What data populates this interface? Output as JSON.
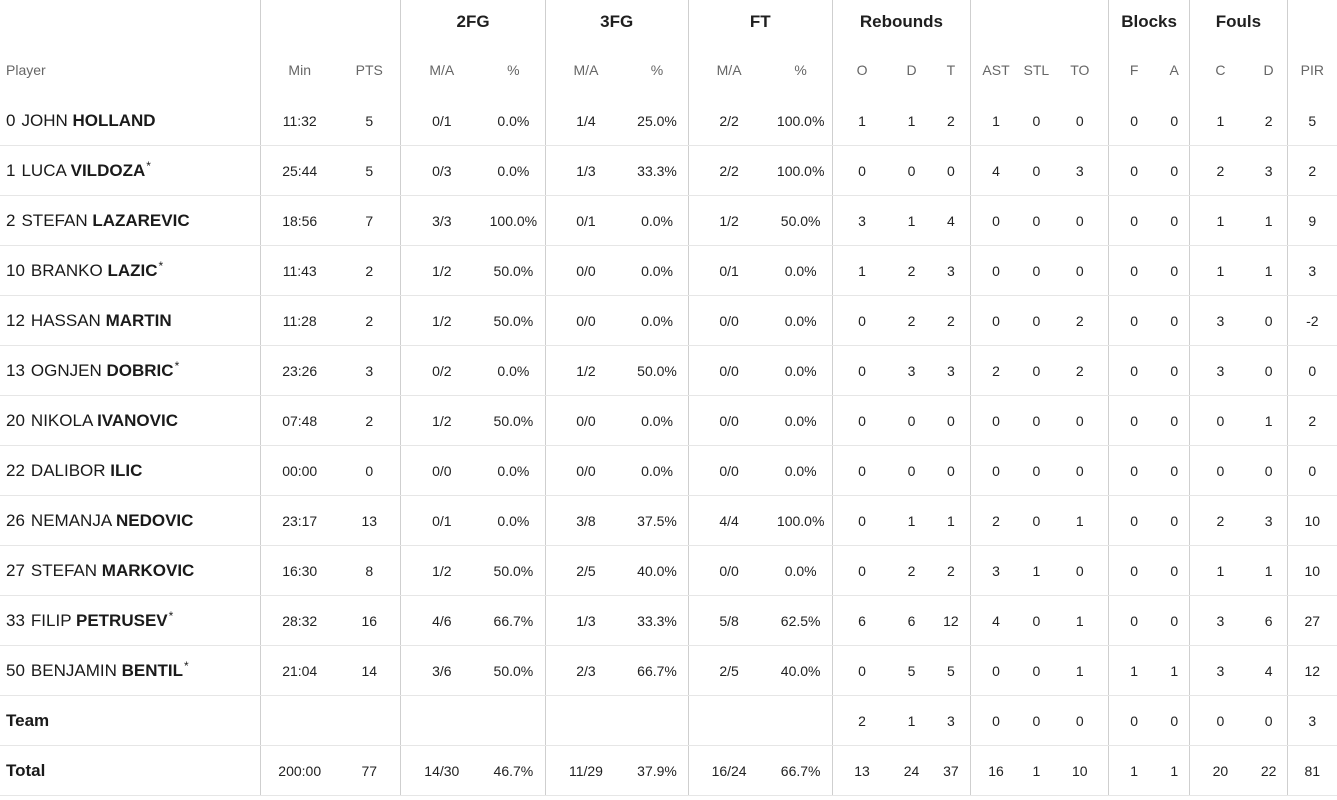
{
  "groups": {
    "two_fg": "2FG",
    "three_fg": "3FG",
    "ft": "FT",
    "rebounds": "Rebounds",
    "blocks": "Blocks",
    "fouls": "Fouls"
  },
  "columns": {
    "player": "Player",
    "min": "Min",
    "pts": "PTS",
    "two_ma": "M/A",
    "two_pct": "%",
    "three_ma": "M/A",
    "three_pct": "%",
    "ft_ma": "M/A",
    "ft_pct": "%",
    "reb_o": "O",
    "reb_d": "D",
    "reb_t": "T",
    "ast": "AST",
    "stl": "STL",
    "to": "TO",
    "blk_f": "F",
    "blk_a": "A",
    "foul_c": "C",
    "foul_d": "D",
    "pir": "PIR"
  },
  "players": [
    {
      "number": "0",
      "first": "JOHN",
      "last": "HOLLAND",
      "starter": "",
      "min": "11:32",
      "pts": "5",
      "two_ma": "0/1",
      "two_pct": "0.0%",
      "three_ma": "1/4",
      "three_pct": "25.0%",
      "ft_ma": "2/2",
      "ft_pct": "100.0%",
      "reb_o": "1",
      "reb_d": "1",
      "reb_t": "2",
      "ast": "1",
      "stl": "0",
      "to": "0",
      "blk_f": "0",
      "blk_a": "0",
      "foul_c": "1",
      "foul_d": "2",
      "pir": "5"
    },
    {
      "number": "1",
      "first": "LUCA",
      "last": "VILDOZA",
      "starter": "*",
      "min": "25:44",
      "pts": "5",
      "two_ma": "0/3",
      "two_pct": "0.0%",
      "three_ma": "1/3",
      "three_pct": "33.3%",
      "ft_ma": "2/2",
      "ft_pct": "100.0%",
      "reb_o": "0",
      "reb_d": "0",
      "reb_t": "0",
      "ast": "4",
      "stl": "0",
      "to": "3",
      "blk_f": "0",
      "blk_a": "0",
      "foul_c": "2",
      "foul_d": "3",
      "pir": "2"
    },
    {
      "number": "2",
      "first": "STEFAN",
      "last": "LAZAREVIC",
      "starter": "",
      "min": "18:56",
      "pts": "7",
      "two_ma": "3/3",
      "two_pct": "100.0%",
      "three_ma": "0/1",
      "three_pct": "0.0%",
      "ft_ma": "1/2",
      "ft_pct": "50.0%",
      "reb_o": "3",
      "reb_d": "1",
      "reb_t": "4",
      "ast": "0",
      "stl": "0",
      "to": "0",
      "blk_f": "0",
      "blk_a": "0",
      "foul_c": "1",
      "foul_d": "1",
      "pir": "9"
    },
    {
      "number": "10",
      "first": "BRANKO",
      "last": "LAZIC",
      "starter": "*",
      "min": "11:43",
      "pts": "2",
      "two_ma": "1/2",
      "two_pct": "50.0%",
      "three_ma": "0/0",
      "three_pct": "0.0%",
      "ft_ma": "0/1",
      "ft_pct": "0.0%",
      "reb_o": "1",
      "reb_d": "2",
      "reb_t": "3",
      "ast": "0",
      "stl": "0",
      "to": "0",
      "blk_f": "0",
      "blk_a": "0",
      "foul_c": "1",
      "foul_d": "1",
      "pir": "3"
    },
    {
      "number": "12",
      "first": "HASSAN",
      "last": "MARTIN",
      "starter": "",
      "min": "11:28",
      "pts": "2",
      "two_ma": "1/2",
      "two_pct": "50.0%",
      "three_ma": "0/0",
      "three_pct": "0.0%",
      "ft_ma": "0/0",
      "ft_pct": "0.0%",
      "reb_o": "0",
      "reb_d": "2",
      "reb_t": "2",
      "ast": "0",
      "stl": "0",
      "to": "2",
      "blk_f": "0",
      "blk_a": "0",
      "foul_c": "3",
      "foul_d": "0",
      "pir": "-2"
    },
    {
      "number": "13",
      "first": "OGNJEN",
      "last": "DOBRIC",
      "starter": "*",
      "min": "23:26",
      "pts": "3",
      "two_ma": "0/2",
      "two_pct": "0.0%",
      "three_ma": "1/2",
      "three_pct": "50.0%",
      "ft_ma": "0/0",
      "ft_pct": "0.0%",
      "reb_o": "0",
      "reb_d": "3",
      "reb_t": "3",
      "ast": "2",
      "stl": "0",
      "to": "2",
      "blk_f": "0",
      "blk_a": "0",
      "foul_c": "3",
      "foul_d": "0",
      "pir": "0"
    },
    {
      "number": "20",
      "first": "NIKOLA",
      "last": "IVANOVIC",
      "starter": "",
      "min": "07:48",
      "pts": "2",
      "two_ma": "1/2",
      "two_pct": "50.0%",
      "three_ma": "0/0",
      "three_pct": "0.0%",
      "ft_ma": "0/0",
      "ft_pct": "0.0%",
      "reb_o": "0",
      "reb_d": "0",
      "reb_t": "0",
      "ast": "0",
      "stl": "0",
      "to": "0",
      "blk_f": "0",
      "blk_a": "0",
      "foul_c": "0",
      "foul_d": "1",
      "pir": "2"
    },
    {
      "number": "22",
      "first": "DALIBOR",
      "last": "ILIC",
      "starter": "",
      "min": "00:00",
      "pts": "0",
      "two_ma": "0/0",
      "two_pct": "0.0%",
      "three_ma": "0/0",
      "three_pct": "0.0%",
      "ft_ma": "0/0",
      "ft_pct": "0.0%",
      "reb_o": "0",
      "reb_d": "0",
      "reb_t": "0",
      "ast": "0",
      "stl": "0",
      "to": "0",
      "blk_f": "0",
      "blk_a": "0",
      "foul_c": "0",
      "foul_d": "0",
      "pir": "0"
    },
    {
      "number": "26",
      "first": "NEMANJA",
      "last": "NEDOVIC",
      "starter": "",
      "min": "23:17",
      "pts": "13",
      "two_ma": "0/1",
      "two_pct": "0.0%",
      "three_ma": "3/8",
      "three_pct": "37.5%",
      "ft_ma": "4/4",
      "ft_pct": "100.0%",
      "reb_o": "0",
      "reb_d": "1",
      "reb_t": "1",
      "ast": "2",
      "stl": "0",
      "to": "1",
      "blk_f": "0",
      "blk_a": "0",
      "foul_c": "2",
      "foul_d": "3",
      "pir": "10"
    },
    {
      "number": "27",
      "first": "STEFAN",
      "last": "MARKOVIC",
      "starter": "",
      "min": "16:30",
      "pts": "8",
      "two_ma": "1/2",
      "two_pct": "50.0%",
      "three_ma": "2/5",
      "three_pct": "40.0%",
      "ft_ma": "0/0",
      "ft_pct": "0.0%",
      "reb_o": "0",
      "reb_d": "2",
      "reb_t": "2",
      "ast": "3",
      "stl": "1",
      "to": "0",
      "blk_f": "0",
      "blk_a": "0",
      "foul_c": "1",
      "foul_d": "1",
      "pir": "10"
    },
    {
      "number": "33",
      "first": "FILIP",
      "last": "PETRUSEV",
      "starter": "*",
      "min": "28:32",
      "pts": "16",
      "two_ma": "4/6",
      "two_pct": "66.7%",
      "three_ma": "1/3",
      "three_pct": "33.3%",
      "ft_ma": "5/8",
      "ft_pct": "62.5%",
      "reb_o": "6",
      "reb_d": "6",
      "reb_t": "12",
      "ast": "4",
      "stl": "0",
      "to": "1",
      "blk_f": "0",
      "blk_a": "0",
      "foul_c": "3",
      "foul_d": "6",
      "pir": "27"
    },
    {
      "number": "50",
      "first": "BENJAMIN",
      "last": "BENTIL",
      "starter": "*",
      "min": "21:04",
      "pts": "14",
      "two_ma": "3/6",
      "two_pct": "50.0%",
      "three_ma": "2/3",
      "three_pct": "66.7%",
      "ft_ma": "2/5",
      "ft_pct": "40.0%",
      "reb_o": "0",
      "reb_d": "5",
      "reb_t": "5",
      "ast": "0",
      "stl": "0",
      "to": "1",
      "blk_f": "1",
      "blk_a": "1",
      "foul_c": "3",
      "foul_d": "4",
      "pir": "12"
    }
  ],
  "team": {
    "label": "Team",
    "min": "",
    "pts": "",
    "two_ma": "",
    "two_pct": "",
    "three_ma": "",
    "three_pct": "",
    "ft_ma": "",
    "ft_pct": "",
    "reb_o": "2",
    "reb_d": "1",
    "reb_t": "3",
    "ast": "0",
    "stl": "0",
    "to": "0",
    "blk_f": "0",
    "blk_a": "0",
    "foul_c": "0",
    "foul_d": "0",
    "pir": "3"
  },
  "total": {
    "label": "Total",
    "min": "200:00",
    "pts": "77",
    "two_ma": "14/30",
    "two_pct": "46.7%",
    "three_ma": "11/29",
    "three_pct": "37.9%",
    "ft_ma": "16/24",
    "ft_pct": "66.7%",
    "reb_o": "13",
    "reb_d": "24",
    "reb_t": "37",
    "ast": "16",
    "stl": "1",
    "to": "10",
    "blk_f": "1",
    "blk_a": "1",
    "foul_c": "20",
    "foul_d": "22",
    "pir": "81"
  }
}
